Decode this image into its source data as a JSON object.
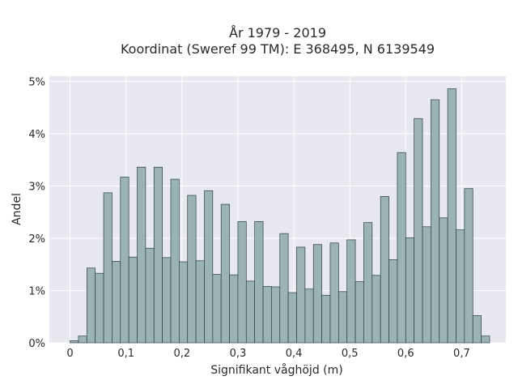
{
  "chart_data": {
    "type": "bar",
    "title_line1": "År 1979 - 2019",
    "title_line2": "Koordinat (Sweref 99 TM): E 368495, N 6139549",
    "xlabel": "Signifikant våghöjd (m)",
    "ylabel": "Andel",
    "x_ticks": [
      {
        "value": 0,
        "label": "0"
      },
      {
        "value": 0.1,
        "label": "0,1"
      },
      {
        "value": 0.2,
        "label": "0,2"
      },
      {
        "value": 0.3,
        "label": "0,3"
      },
      {
        "value": 0.4,
        "label": "0,4"
      },
      {
        "value": 0.5,
        "label": "0,5"
      },
      {
        "value": 0.6,
        "label": "0,6"
      },
      {
        "value": 0.7,
        "label": "0,7"
      }
    ],
    "y_ticks": [
      {
        "value": 0,
        "label": "0%"
      },
      {
        "value": 1,
        "label": "1%"
      },
      {
        "value": 2,
        "label": "2%"
      },
      {
        "value": 3,
        "label": "3%"
      },
      {
        "value": 4,
        "label": "4%"
      },
      {
        "value": 5,
        "label": "5%"
      }
    ],
    "xlim": [
      -0.037,
      0.779
    ],
    "ylim": [
      0,
      5.1
    ],
    "grid": true,
    "bin_width": 0.015,
    "bin_start": 0,
    "values": [
      0.04,
      0.13,
      1.43,
      1.33,
      2.87,
      1.56,
      3.17,
      1.64,
      3.36,
      1.81,
      3.36,
      1.63,
      3.13,
      1.55,
      2.82,
      1.57,
      2.91,
      1.31,
      2.65,
      1.3,
      2.32,
      1.18,
      2.32,
      1.08,
      1.07,
      2.09,
      0.96,
      1.83,
      1.03,
      1.88,
      0.91,
      1.91,
      0.98,
      1.97,
      1.17,
      2.3,
      1.29,
      2.8,
      1.59,
      3.64,
      2.01,
      4.29,
      2.22,
      4.65,
      2.39,
      4.86,
      2.16,
      2.95,
      0.52,
      0.13
    ],
    "colors": {
      "plot_bg": "#e8e8f0",
      "bar_fill": "#9bb3b3",
      "bar_edge": "#2f3f3f",
      "grid": "#ffffff"
    }
  }
}
